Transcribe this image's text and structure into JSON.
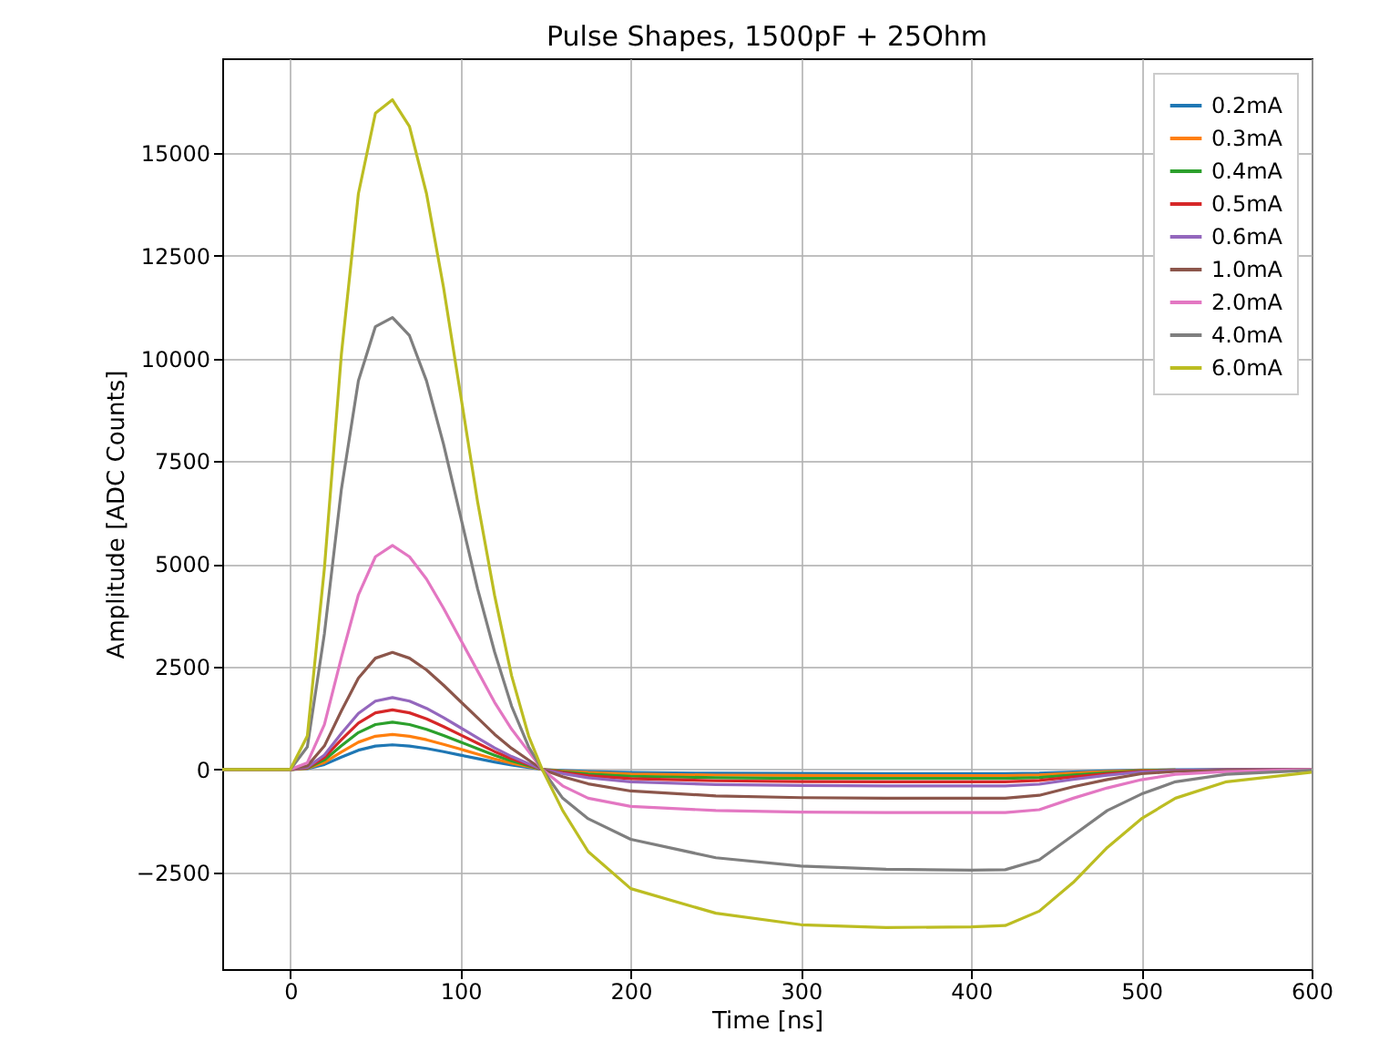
{
  "chart_data": {
    "type": "line",
    "title": "Pulse Shapes, 1500pF + 25Ohm",
    "xlabel": "Time [ns]",
    "ylabel": "Amplitude [ADC Counts]",
    "x": [
      -40,
      0,
      10,
      20,
      30,
      40,
      50,
      60,
      70,
      80,
      90,
      100,
      110,
      120,
      130,
      140,
      148,
      160,
      175,
      200,
      250,
      300,
      350,
      400,
      420,
      440,
      460,
      480,
      500,
      520,
      550,
      600
    ],
    "series": [
      {
        "name": "0.2mA",
        "color": "#1f77b4",
        "values": [
          0,
          0,
          18,
          120,
          300,
          468,
          570,
          600,
          570,
          510,
          432,
          348,
          264,
          180,
          108,
          48,
          0,
          -25,
          -50,
          -75,
          -92,
          -98,
          -100,
          -100,
          -100,
          -90,
          -60,
          -35,
          -15,
          -7,
          -3,
          0
        ]
      },
      {
        "name": "0.3mA",
        "color": "#ff7f0e",
        "values": [
          0,
          0,
          26,
          170,
          425,
          663,
          808,
          850,
          808,
          723,
          612,
          493,
          374,
          255,
          153,
          68,
          0,
          -38,
          -75,
          -113,
          -138,
          -147,
          -150,
          -150,
          -150,
          -135,
          -90,
          -53,
          -23,
          -11,
          null,
          null
        ]
      },
      {
        "name": "0.4mA",
        "color": "#2ca02c",
        "values": [
          0,
          0,
          35,
          230,
          575,
          897,
          1093,
          1150,
          1093,
          978,
          828,
          667,
          506,
          345,
          207,
          92,
          0,
          -55,
          -110,
          -165,
          -202,
          -216,
          -220,
          -220,
          -220,
          -198,
          -132,
          -77,
          -33,
          -15,
          null,
          null
        ]
      },
      {
        "name": "0.5mA",
        "color": "#d62728",
        "values": [
          0,
          0,
          44,
          290,
          725,
          1131,
          1378,
          1450,
          1378,
          1233,
          1044,
          841,
          638,
          435,
          261,
          116,
          0,
          -75,
          -150,
          -225,
          -276,
          -294,
          -300,
          -300,
          -300,
          -270,
          -180,
          -105,
          -45,
          -21,
          -9,
          0
        ]
      },
      {
        "name": "0.6mA",
        "color": "#9467bd",
        "values": [
          0,
          0,
          53,
          350,
          875,
          1365,
          1663,
          1750,
          1663,
          1488,
          1260,
          1015,
          770,
          525,
          315,
          140,
          0,
          -100,
          -200,
          -300,
          -368,
          -392,
          -400,
          -400,
          -400,
          -360,
          -240,
          -140,
          -60,
          -28,
          -12,
          0
        ]
      },
      {
        "name": "1.0mA",
        "color": "#8c564b",
        "values": [
          0,
          0,
          86,
          570,
          1425,
          2223,
          2708,
          2850,
          2708,
          2423,
          2052,
          1653,
          1254,
          855,
          513,
          228,
          0,
          -175,
          -350,
          -525,
          -644,
          -686,
          -700,
          -700,
          -700,
          -630,
          -420,
          -245,
          -105,
          -49,
          -21,
          0
        ]
      },
      {
        "name": "2.0mA",
        "color": "#e377c2",
        "values": [
          0,
          0,
          164,
          1090,
          2725,
          4251,
          5178,
          5450,
          5178,
          4633,
          3924,
          3161,
          2398,
          1635,
          981,
          436,
          0,
          -400,
          -700,
          -900,
          -1000,
          -1040,
          -1050,
          -1050,
          -1050,
          -980,
          -700,
          -450,
          -250,
          -120,
          -50,
          0
        ]
      },
      {
        "name": "4.0mA",
        "color": "#7f7f7f",
        "values": [
          0,
          0,
          550,
          3300,
          6820,
          9460,
          10780,
          11000,
          10560,
          9460,
          7920,
          6160,
          4400,
          2860,
          1540,
          550,
          0,
          -700,
          -1200,
          -1700,
          -2150,
          -2350,
          -2430,
          -2450,
          -2440,
          -2200,
          -1600,
          -1000,
          -600,
          -300,
          -120,
          -20
        ]
      },
      {
        "name": "6.0mA",
        "color": "#bcbd22",
        "values": [
          0,
          0,
          815,
          4890,
          10106,
          14018,
          15974,
          16300,
          15648,
          14018,
          11736,
          9128,
          6520,
          4238,
          2282,
          815,
          0,
          -1000,
          -2000,
          -2900,
          -3500,
          -3780,
          -3850,
          -3830,
          -3800,
          -3450,
          -2750,
          -1900,
          -1200,
          -700,
          -300,
          -70
        ]
      }
    ],
    "xlim": [
      -40,
      600
    ],
    "xticks": [
      0,
      100,
      200,
      300,
      400,
      500,
      600
    ],
    "ylim": [
      -4860,
      17310
    ],
    "yticks": [
      -2500,
      0,
      2500,
      5000,
      7500,
      10000,
      12500,
      15000
    ],
    "grid": true,
    "legend": "top right"
  }
}
